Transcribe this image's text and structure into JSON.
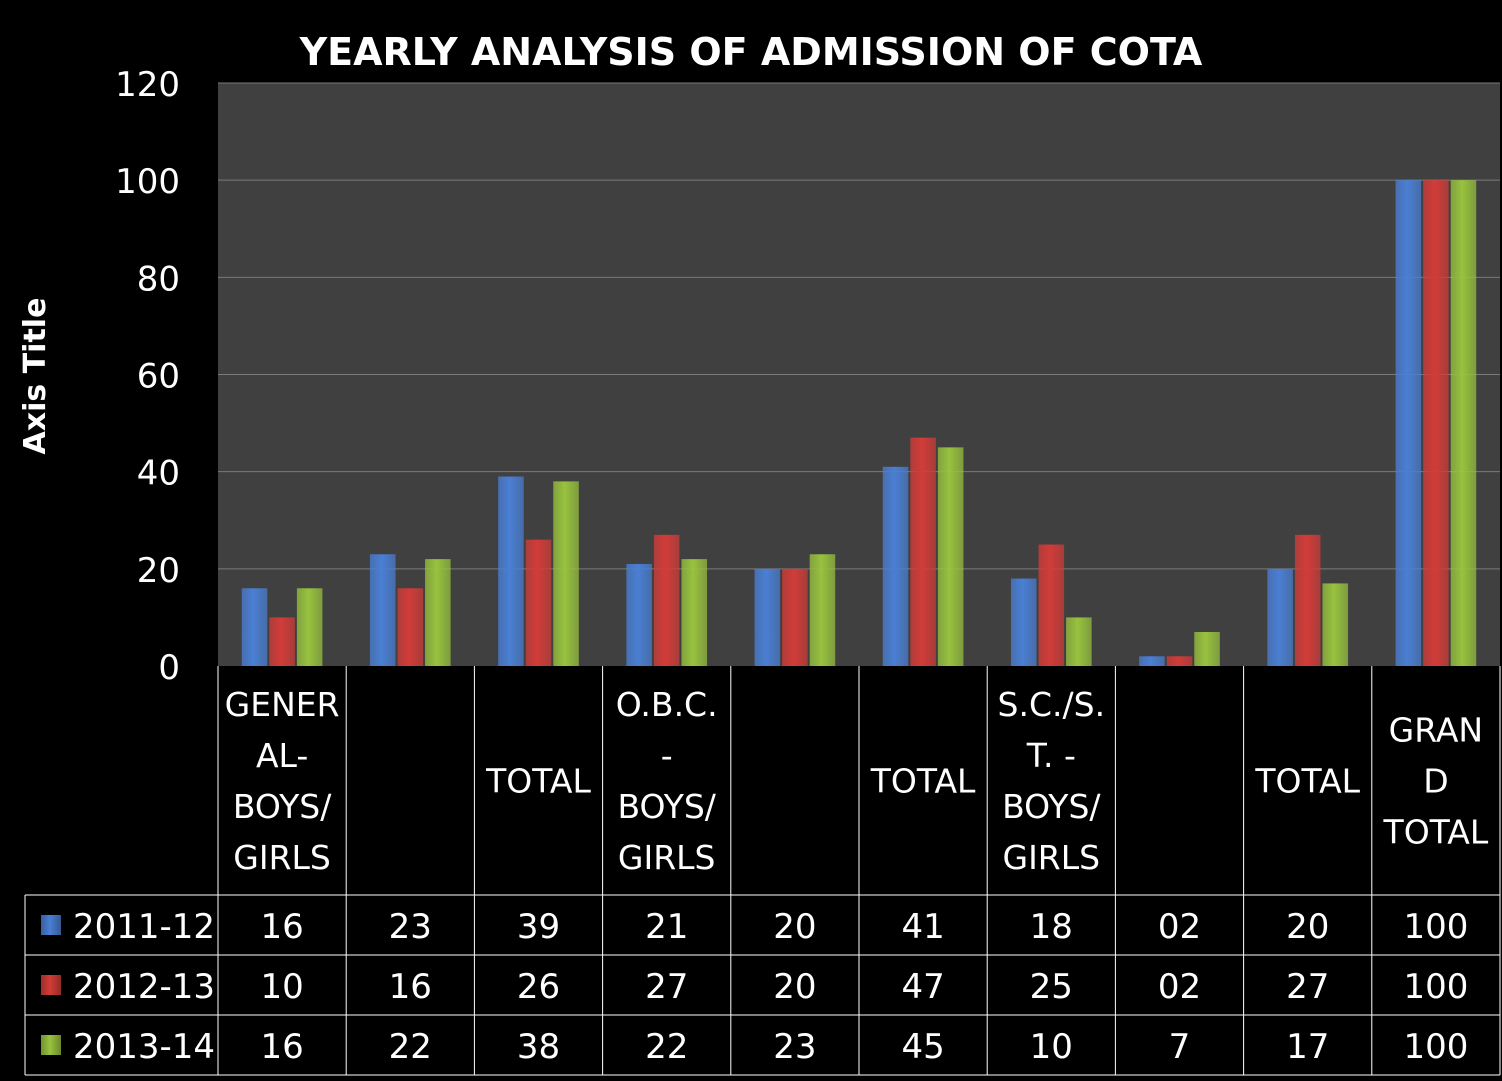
{
  "chart_data": {
    "type": "bar",
    "title": "YEARLY ANALYSIS OF  ADMISSION OF COTA",
    "ylabel": "Axis Title",
    "xlabel": "",
    "ylim": [
      0,
      120
    ],
    "yticks": [
      0,
      20,
      40,
      60,
      80,
      100,
      120
    ],
    "grid": true,
    "categories": [
      [
        "GENER",
        "AL-",
        "BOYS/",
        "GIRLS"
      ],
      [],
      [
        "TOTAL"
      ],
      [
        "O.B.C.",
        "-",
        "BOYS/",
        "GIRLS"
      ],
      [],
      [
        "TOTAL"
      ],
      [
        "S.C./S.",
        "T. -",
        "BOYS/",
        "GIRLS"
      ],
      [],
      [
        "TOTAL"
      ],
      [
        "GRAN",
        "D",
        "TOTAL"
      ]
    ],
    "series": [
      {
        "name": "2011-12",
        "color": "#4a7fd4",
        "values": [
          16,
          23,
          39,
          21,
          20,
          41,
          18,
          2,
          20,
          100
        ],
        "labels": [
          "16",
          "23",
          "39",
          "21",
          "20",
          "41",
          "18",
          "02",
          "20",
          "100"
        ]
      },
      {
        "name": "2012-13",
        "color": "#d23c38",
        "values": [
          10,
          16,
          26,
          27,
          20,
          47,
          25,
          2,
          27,
          100
        ],
        "labels": [
          "10",
          "16",
          "26",
          "27",
          "20",
          "47",
          "25",
          "02",
          "27",
          "100"
        ]
      },
      {
        "name": "2013-14",
        "color": "#98c23e",
        "values": [
          16,
          22,
          38,
          22,
          23,
          45,
          10,
          7,
          17,
          100
        ],
        "labels": [
          "16",
          "22",
          "38",
          "22",
          "23",
          "45",
          "10",
          "7",
          "17",
          "100"
        ]
      }
    ],
    "colors": {
      "plot_background": "#404040",
      "page_background": "#000000",
      "gridline": "#7a7a7a",
      "text": "#ffffff"
    }
  }
}
